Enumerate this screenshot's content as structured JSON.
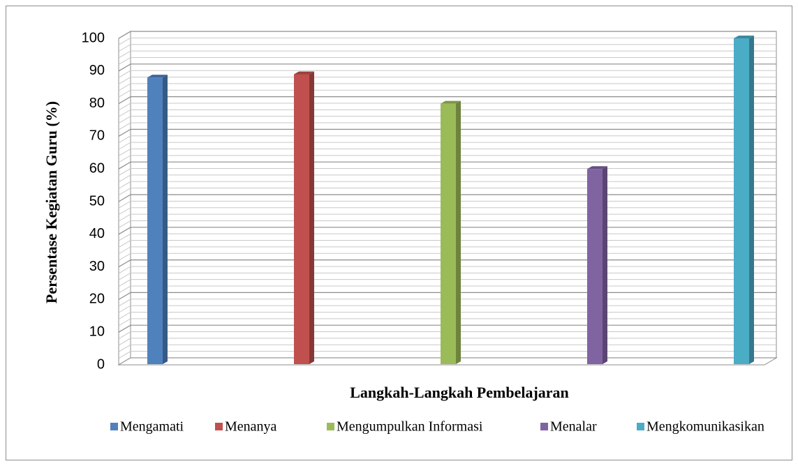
{
  "chart_data": {
    "type": "bar3d",
    "x_label": "Langkah-Langkah Pembelajaran",
    "y_label": "Persentase Kegiatan Guru (%)",
    "series": [
      {
        "name": "Mengamati",
        "color": "#4f81bd",
        "values": [
          88
        ]
      },
      {
        "name": "Menanya",
        "color": "#c0504d",
        "values": [
          89
        ]
      },
      {
        "name": "Mengumpulkan Informasi",
        "color": "#9bbb59",
        "values": [
          80
        ]
      },
      {
        "name": "Menalar",
        "color": "#8064a2",
        "values": [
          60
        ]
      },
      {
        "name": "Mengkomunikasikan",
        "color": "#4bacc6",
        "values": [
          100
        ]
      }
    ],
    "ylim": [
      0,
      100
    ],
    "yticks": [
      0,
      10,
      20,
      30,
      40,
      50,
      60,
      70,
      80,
      90,
      100
    ],
    "grid": true,
    "legend": "bottom"
  }
}
